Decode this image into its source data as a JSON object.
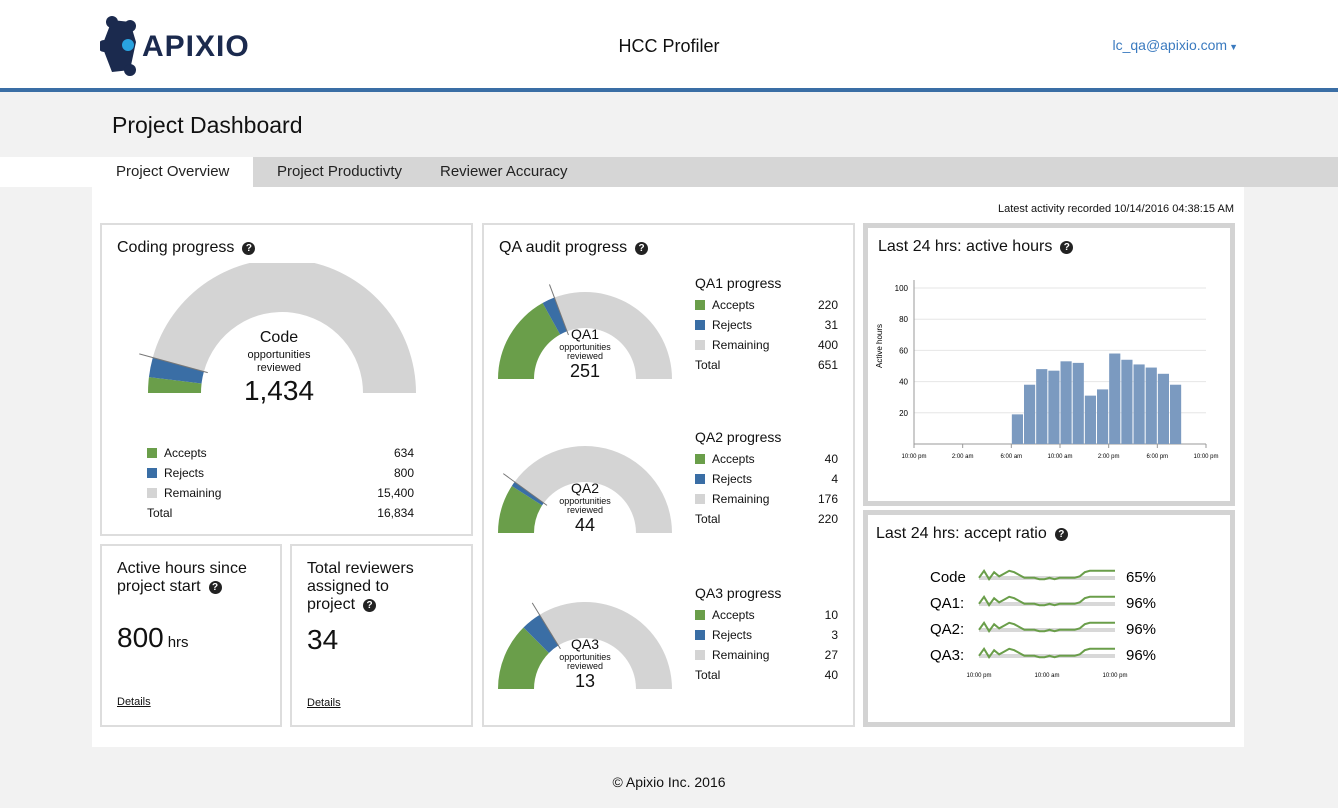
{
  "header": {
    "logo_text": "APIXIO",
    "app_title": "HCC Profiler",
    "user_email": "lc_qa@apixio.com"
  },
  "page": {
    "title": "Project Dashboard"
  },
  "tabs": [
    {
      "label": "Project Overview",
      "active": true
    },
    {
      "label": "Project Productivty",
      "active": false
    },
    {
      "label": "Reviewer Accuracy",
      "active": false
    }
  ],
  "latest_activity": "Latest activity recorded 10/14/2016 04:38:15 AM",
  "colors": {
    "accept": "#6a9e4a",
    "reject": "#3a6ea5",
    "remaining": "#d4d4d4",
    "bar": "#7b9ac0",
    "accent": "#3a6ea5"
  },
  "coding_progress": {
    "title": "Coding progress",
    "center_label": "Code",
    "center_sub1": "opportunities",
    "center_sub2": "reviewed",
    "center_value": "1,434",
    "legend": [
      {
        "label": "Accepts",
        "value": "634",
        "color": "#6a9e4a"
      },
      {
        "label": "Rejects",
        "value": "800",
        "color": "#3a6ea5"
      },
      {
        "label": "Remaining",
        "value": "15,400",
        "color": "#d4d4d4"
      }
    ],
    "total_label": "Total",
    "total_value": "16,834",
    "gauge": {
      "accepts": 634,
      "rejects": 800,
      "remaining": 15400
    }
  },
  "active_hours": {
    "title_line1": "Active hours since",
    "title_line2": "project start",
    "value": "800",
    "unit": "hrs",
    "details": "Details"
  },
  "total_reviewers": {
    "title_line1": "Total reviewers",
    "title_line2": "assigned to",
    "title_line3": "project",
    "value": "34",
    "details": "Details"
  },
  "qa_audit": {
    "title": "QA audit progress",
    "sub1": "opportunities",
    "sub2": "reviewed",
    "sections": [
      {
        "title": "QA1 progress",
        "gauge_label": "QA1",
        "center_value": "251",
        "legend": [
          {
            "label": "Accepts",
            "value": "220"
          },
          {
            "label": "Rejects",
            "value": "31"
          },
          {
            "label": "Remaining",
            "value": "400"
          }
        ],
        "total_label": "Total",
        "total_value": "651",
        "gauge": {
          "accepts": 220,
          "rejects": 31,
          "remaining": 400
        }
      },
      {
        "title": "QA2 progress",
        "gauge_label": "QA2",
        "center_value": "44",
        "legend": [
          {
            "label": "Accepts",
            "value": "40"
          },
          {
            "label": "Rejects",
            "value": "4"
          },
          {
            "label": "Remaining",
            "value": "176"
          }
        ],
        "total_label": "Total",
        "total_value": "220",
        "gauge": {
          "accepts": 40,
          "rejects": 4,
          "remaining": 176
        }
      },
      {
        "title": "QA3 progress",
        "gauge_label": "QA3",
        "center_value": "13",
        "legend": [
          {
            "label": "Accepts",
            "value": "10"
          },
          {
            "label": "Rejects",
            "value": "3"
          },
          {
            "label": "Remaining",
            "value": "27"
          }
        ],
        "total_label": "Total",
        "total_value": "40",
        "gauge": {
          "accepts": 10,
          "rejects": 3,
          "remaining": 27
        }
      }
    ]
  },
  "active_hours_24": {
    "title": "Last 24 hrs: active hours",
    "chart_data": {
      "type": "bar",
      "ylabel": "Active hours",
      "ylim": [
        0,
        100
      ],
      "yticks": [
        20,
        40,
        60,
        80,
        100
      ],
      "x_tick_labels": [
        "10:00 pm",
        "2:00 am",
        "6:00 am",
        "10:00 am",
        "2:00 pm",
        "6:00 pm",
        "10:00 pm"
      ],
      "x_tick_hours": [
        0,
        4,
        8,
        12,
        16,
        20,
        24
      ],
      "bars": [
        {
          "hour": 8.5,
          "value": 19
        },
        {
          "hour": 9.5,
          "value": 38
        },
        {
          "hour": 10.5,
          "value": 48
        },
        {
          "hour": 11.5,
          "value": 47
        },
        {
          "hour": 12.5,
          "value": 53
        },
        {
          "hour": 13.5,
          "value": 52
        },
        {
          "hour": 14.5,
          "value": 31
        },
        {
          "hour": 15.5,
          "value": 35
        },
        {
          "hour": 16.5,
          "value": 58
        },
        {
          "hour": 17.5,
          "value": 54
        },
        {
          "hour": 18.5,
          "value": 51
        },
        {
          "hour": 19.5,
          "value": 49
        },
        {
          "hour": 20.5,
          "value": 45
        },
        {
          "hour": 21.5,
          "value": 38
        }
      ]
    }
  },
  "accept_ratio_24": {
    "title": "Last 24 hrs: accept ratio",
    "chart_data": {
      "type": "line",
      "x_tick_labels": [
        "10:00 pm",
        "10:00 am",
        "10:00 pm"
      ],
      "series": [
        {
          "name": "Code",
          "ratio": "65%",
          "values": [
            0.3,
            0.8,
            0.2,
            0.7,
            0.4,
            0.6,
            0.8,
            0.7,
            0.5,
            0.3,
            0.3,
            0.3,
            0.2,
            0.2,
            0.3,
            0.2,
            0.3,
            0.3,
            0.3,
            0.3,
            0.4,
            0.7,
            0.8,
            0.8,
            0.8,
            0.8,
            0.8,
            0.8
          ]
        },
        {
          "name": "QA1:",
          "ratio": "96%",
          "values": [
            0.3,
            0.8,
            0.2,
            0.7,
            0.4,
            0.6,
            0.8,
            0.7,
            0.5,
            0.3,
            0.3,
            0.3,
            0.2,
            0.2,
            0.3,
            0.2,
            0.3,
            0.3,
            0.3,
            0.3,
            0.4,
            0.7,
            0.8,
            0.8,
            0.8,
            0.8,
            0.8,
            0.8
          ]
        },
        {
          "name": "QA2:",
          "ratio": "96%",
          "values": [
            0.3,
            0.8,
            0.2,
            0.7,
            0.4,
            0.6,
            0.8,
            0.7,
            0.5,
            0.3,
            0.3,
            0.3,
            0.2,
            0.2,
            0.3,
            0.2,
            0.3,
            0.3,
            0.3,
            0.3,
            0.4,
            0.7,
            0.8,
            0.8,
            0.8,
            0.8,
            0.8,
            0.8
          ]
        },
        {
          "name": "QA3:",
          "ratio": "96%",
          "values": [
            0.3,
            0.8,
            0.2,
            0.7,
            0.4,
            0.6,
            0.8,
            0.7,
            0.5,
            0.3,
            0.3,
            0.3,
            0.2,
            0.2,
            0.3,
            0.2,
            0.3,
            0.3,
            0.3,
            0.3,
            0.4,
            0.7,
            0.8,
            0.8,
            0.8,
            0.8,
            0.8,
            0.8
          ]
        }
      ]
    }
  },
  "footer": {
    "text": "© Apixio Inc. 2016"
  }
}
